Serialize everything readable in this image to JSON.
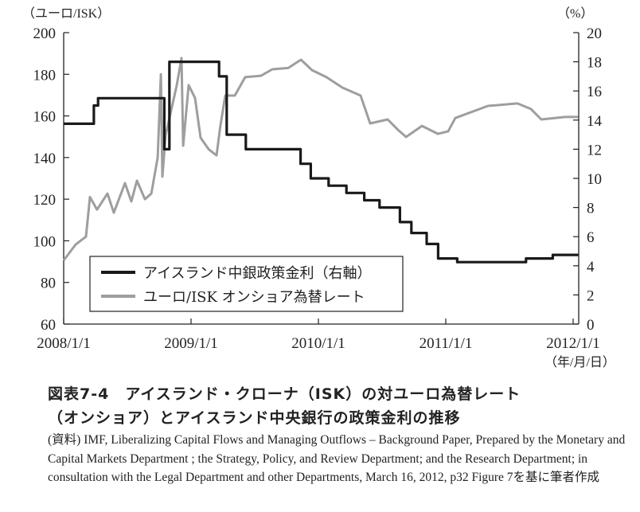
{
  "chart_data": {
    "type": "line",
    "left_axis": {
      "label": "（ユーロ/ISK）",
      "ylim": [
        60,
        200
      ],
      "ticks": [
        60,
        80,
        100,
        120,
        140,
        160,
        180,
        200
      ]
    },
    "right_axis": {
      "label": "（%）",
      "ylim": [
        0,
        20
      ],
      "ticks": [
        0,
        2,
        4,
        6,
        8,
        10,
        12,
        14,
        16,
        18,
        20
      ]
    },
    "x_axis": {
      "unit_label": "（年/月/日）",
      "range": [
        2008.0,
        2012.04
      ],
      "ticks": [
        {
          "value": 2008.0,
          "label": "2008/1/1"
        },
        {
          "value": 2009.0,
          "label": "2009/1/1"
        },
        {
          "value": 2010.0,
          "label": "2010/1/1"
        },
        {
          "value": 2011.0,
          "label": "2011/1/1"
        },
        {
          "value": 2012.0,
          "label": "2012/1/1"
        }
      ]
    },
    "legend": {
      "placement": "bottom-left"
    },
    "series": [
      {
        "name": "アイスランド中銀政策金利（右軸）",
        "axis": "right",
        "color": "#1a1a1a",
        "step": true,
        "points": [
          [
            2008.0,
            13.75
          ],
          [
            2008.237,
            15.0
          ],
          [
            2008.27,
            15.5
          ],
          [
            2008.79,
            12.0
          ],
          [
            2008.83,
            18.0
          ],
          [
            2009.22,
            17.0
          ],
          [
            2009.28,
            13.0
          ],
          [
            2009.43,
            12.0
          ],
          [
            2009.86,
            11.0
          ],
          [
            2009.94,
            10.0
          ],
          [
            2010.08,
            9.5
          ],
          [
            2010.22,
            9.0
          ],
          [
            2010.36,
            8.5
          ],
          [
            2010.48,
            8.0
          ],
          [
            2010.64,
            7.0
          ],
          [
            2010.73,
            6.25
          ],
          [
            2010.85,
            5.5
          ],
          [
            2010.94,
            4.5
          ],
          [
            2011.09,
            4.25
          ],
          [
            2011.63,
            4.5
          ],
          [
            2011.84,
            4.75
          ],
          [
            2012.04,
            4.75
          ]
        ]
      },
      {
        "name": "ユーロ/ISK オンショア為替レート",
        "axis": "left",
        "color": "#9e9e9e",
        "step": false,
        "points": [
          [
            2008.0,
            90.6
          ],
          [
            2008.094,
            98.2
          ],
          [
            2008.175,
            102
          ],
          [
            2008.206,
            121
          ],
          [
            2008.262,
            115
          ],
          [
            2008.344,
            122.7
          ],
          [
            2008.394,
            113.5
          ],
          [
            2008.481,
            127.7
          ],
          [
            2008.531,
            118.9
          ],
          [
            2008.575,
            128.9
          ],
          [
            2008.638,
            120
          ],
          [
            2008.688,
            122.7
          ],
          [
            2008.738,
            140
          ],
          [
            2008.763,
            180
          ],
          [
            2008.775,
            130.8
          ],
          [
            2008.8,
            150.7
          ],
          [
            2008.888,
            174.8
          ],
          [
            2008.925,
            187.8
          ],
          [
            2008.938,
            145.7
          ],
          [
            2008.981,
            174.8
          ],
          [
            2009.031,
            168.6
          ],
          [
            2009.075,
            149.5
          ],
          [
            2009.138,
            144
          ],
          [
            2009.2,
            141
          ],
          [
            2009.231,
            155.6
          ],
          [
            2009.269,
            169.8
          ],
          [
            2009.344,
            169.8
          ],
          [
            2009.425,
            178.6
          ],
          [
            2009.55,
            179.3
          ],
          [
            2009.638,
            182.4
          ],
          [
            2009.763,
            183
          ],
          [
            2009.863,
            187
          ],
          [
            2009.95,
            182
          ],
          [
            2010.063,
            178.6
          ],
          [
            2010.188,
            173.6
          ],
          [
            2010.331,
            169.8
          ],
          [
            2010.406,
            156.4
          ],
          [
            2010.544,
            158.3
          ],
          [
            2010.625,
            153.3
          ],
          [
            2010.688,
            149.9
          ],
          [
            2010.813,
            155.2
          ],
          [
            2010.938,
            151.4
          ],
          [
            2011.019,
            152.6
          ],
          [
            2011.075,
            159
          ],
          [
            2011.331,
            164.8
          ],
          [
            2011.563,
            166
          ],
          [
            2011.669,
            163.3
          ],
          [
            2011.75,
            158.3
          ],
          [
            2011.938,
            159.5
          ],
          [
            2012.04,
            159.5
          ]
        ]
      }
    ]
  },
  "caption": {
    "line1": "図表7-4　アイスランド・クローナ（ISK）の対ユーロ為替レート",
    "line2": "（オンショア）とアイスランド中央銀行の政策金利の推移"
  },
  "source": {
    "text": "(資料) IMF, Liberalizing Capital Flows and Managing Outflows – Background Paper, Prepared by the Monetary and Capital Markets Department ; the Strategy, Policy, and Review Department; and the Research Department; in consultation with the Legal Department and other Departments, March 16, 2012, p32 Figure 7を基に筆者作成"
  }
}
